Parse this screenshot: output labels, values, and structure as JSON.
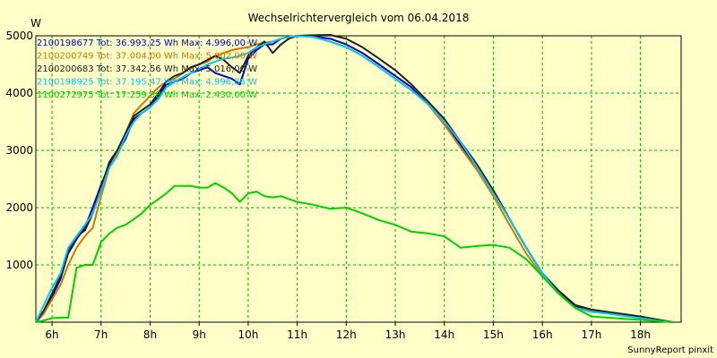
{
  "chart_data": {
    "type": "line",
    "title": "Wechselrichtervergleich vom 06.04.2018",
    "ylabel": "W",
    "xlabel": "",
    "footer": "SunnyReport pinxit",
    "xlim": [
      5.67,
      18.83
    ],
    "ylim": [
      0,
      5000
    ],
    "yticks": [
      1000,
      2000,
      3000,
      4000,
      5000
    ],
    "xticks": [
      6,
      7,
      8,
      9,
      10,
      11,
      12,
      13,
      14,
      15,
      16,
      17,
      18
    ],
    "xtick_labels": [
      "6h",
      "7h",
      "8h",
      "9h",
      "10h",
      "11h",
      "12h",
      "13h",
      "14h",
      "15h",
      "16h",
      "17h",
      "18h"
    ],
    "grid": true,
    "legend_position": "top-left",
    "series": [
      {
        "name": "2100198677 Tot: 36.993,25 Wh Max: 4.996,00 W",
        "color": "#0000c8",
        "points": [
          [
            5.67,
            0
          ],
          [
            5.83,
            150
          ],
          [
            6.0,
            450
          ],
          [
            6.17,
            750
          ],
          [
            6.33,
            1200
          ],
          [
            6.5,
            1450
          ],
          [
            6.67,
            1650
          ],
          [
            6.83,
            2000
          ],
          [
            7.0,
            2400
          ],
          [
            7.17,
            2750
          ],
          [
            7.33,
            2950
          ],
          [
            7.5,
            3200
          ],
          [
            7.67,
            3550
          ],
          [
            7.83,
            3650
          ],
          [
            8.0,
            3750
          ],
          [
            8.17,
            3950
          ],
          [
            8.33,
            4150
          ],
          [
            8.5,
            4200
          ],
          [
            8.67,
            4250
          ],
          [
            8.83,
            4350
          ],
          [
            9.0,
            4400
          ],
          [
            9.17,
            4450
          ],
          [
            9.33,
            4350
          ],
          [
            9.5,
            4300
          ],
          [
            9.67,
            4250
          ],
          [
            9.83,
            4150
          ],
          [
            10.0,
            4600
          ],
          [
            10.17,
            4750
          ],
          [
            10.33,
            4850
          ],
          [
            10.5,
            4850
          ],
          [
            10.67,
            4950
          ],
          [
            10.83,
            4980
          ],
          [
            11.0,
            4996
          ],
          [
            11.33,
            4990
          ],
          [
            11.67,
            4950
          ],
          [
            12.0,
            4850
          ],
          [
            12.33,
            4700
          ],
          [
            12.67,
            4500
          ],
          [
            13.0,
            4300
          ],
          [
            13.33,
            4100
          ],
          [
            13.67,
            3800
          ],
          [
            14.0,
            3500
          ],
          [
            14.33,
            3100
          ],
          [
            14.67,
            2700
          ],
          [
            15.0,
            2300
          ],
          [
            15.33,
            1800
          ],
          [
            15.67,
            1300
          ],
          [
            16.0,
            850
          ],
          [
            16.33,
            550
          ],
          [
            16.67,
            280
          ],
          [
            17.0,
            200
          ],
          [
            17.33,
            170
          ],
          [
            17.67,
            130
          ],
          [
            18.0,
            90
          ],
          [
            18.33,
            40
          ],
          [
            18.67,
            0
          ]
        ]
      },
      {
        "name": "2100200749 Tot: 37.004,00 Wh Max: 5.002,00 W",
        "color": "#d27800",
        "points": [
          [
            5.67,
            0
          ],
          [
            5.83,
            150
          ],
          [
            6.0,
            400
          ],
          [
            6.17,
            650
          ],
          [
            6.33,
            1000
          ],
          [
            6.5,
            1300
          ],
          [
            6.67,
            1500
          ],
          [
            6.83,
            1650
          ],
          [
            7.0,
            2200
          ],
          [
            7.17,
            2700
          ],
          [
            7.33,
            2950
          ],
          [
            7.5,
            3300
          ],
          [
            7.67,
            3650
          ],
          [
            7.83,
            3800
          ],
          [
            8.0,
            3950
          ],
          [
            8.17,
            4100
          ],
          [
            8.33,
            4200
          ],
          [
            8.5,
            4250
          ],
          [
            8.67,
            4350
          ],
          [
            8.83,
            4450
          ],
          [
            9.0,
            4500
          ],
          [
            9.17,
            4550
          ],
          [
            9.33,
            4650
          ],
          [
            9.5,
            4700
          ],
          [
            9.67,
            4750
          ],
          [
            9.83,
            4780
          ],
          [
            10.0,
            4800
          ],
          [
            10.17,
            4850
          ],
          [
            10.33,
            4880
          ],
          [
            10.5,
            4900
          ],
          [
            10.67,
            4950
          ],
          [
            10.83,
            4980
          ],
          [
            11.0,
            5002
          ],
          [
            11.33,
            4980
          ],
          [
            11.67,
            4900
          ],
          [
            12.0,
            4800
          ],
          [
            12.33,
            4650
          ],
          [
            12.67,
            4450
          ],
          [
            13.0,
            4250
          ],
          [
            13.33,
            4050
          ],
          [
            13.67,
            3800
          ],
          [
            14.0,
            3450
          ],
          [
            14.33,
            3050
          ],
          [
            14.67,
            2650
          ],
          [
            15.0,
            2200
          ],
          [
            15.33,
            1700
          ],
          [
            15.67,
            1200
          ],
          [
            16.0,
            800
          ],
          [
            16.33,
            500
          ],
          [
            16.67,
            250
          ],
          [
            17.0,
            200
          ],
          [
            17.33,
            160
          ],
          [
            17.67,
            120
          ],
          [
            18.0,
            80
          ],
          [
            18.33,
            30
          ],
          [
            18.67,
            0
          ]
        ]
      },
      {
        "name": "2100200683 Tot: 37.342,56 Wh Max: 5.016,00 W",
        "color": "#202020",
        "points": [
          [
            5.67,
            0
          ],
          [
            5.83,
            200
          ],
          [
            6.0,
            500
          ],
          [
            6.17,
            800
          ],
          [
            6.33,
            1250
          ],
          [
            6.5,
            1500
          ],
          [
            6.67,
            1600
          ],
          [
            6.83,
            1900
          ],
          [
            7.0,
            2350
          ],
          [
            7.17,
            2800
          ],
          [
            7.33,
            3000
          ],
          [
            7.5,
            3300
          ],
          [
            7.67,
            3600
          ],
          [
            7.83,
            3700
          ],
          [
            8.0,
            3800
          ],
          [
            8.17,
            4000
          ],
          [
            8.33,
            4200
          ],
          [
            8.5,
            4300
          ],
          [
            8.67,
            4350
          ],
          [
            8.83,
            4450
          ],
          [
            9.0,
            4500
          ],
          [
            9.17,
            4580
          ],
          [
            9.33,
            4650
          ],
          [
            9.5,
            4580
          ],
          [
            9.67,
            4450
          ],
          [
            9.83,
            4350
          ],
          [
            10.0,
            4650
          ],
          [
            10.17,
            4800
          ],
          [
            10.33,
            4900
          ],
          [
            10.5,
            4700
          ],
          [
            10.67,
            4850
          ],
          [
            10.83,
            4950
          ],
          [
            11.0,
            5000
          ],
          [
            11.33,
            5010
          ],
          [
            11.67,
            5016
          ],
          [
            12.0,
            4950
          ],
          [
            12.33,
            4800
          ],
          [
            12.67,
            4600
          ],
          [
            13.0,
            4400
          ],
          [
            13.33,
            4150
          ],
          [
            13.67,
            3850
          ],
          [
            14.0,
            3550
          ],
          [
            14.33,
            3150
          ],
          [
            14.67,
            2750
          ],
          [
            15.0,
            2300
          ],
          [
            15.33,
            1800
          ],
          [
            15.67,
            1300
          ],
          [
            16.0,
            850
          ],
          [
            16.33,
            550
          ],
          [
            16.67,
            300
          ],
          [
            17.0,
            220
          ],
          [
            17.33,
            180
          ],
          [
            17.67,
            140
          ],
          [
            18.0,
            100
          ],
          [
            18.33,
            50
          ],
          [
            18.67,
            0
          ]
        ]
      },
      {
        "name": "2100198925 Tot: 37.195,47 Wh Max: 4.996,86 W",
        "color": "#00c8f0",
        "points": [
          [
            5.67,
            0
          ],
          [
            5.83,
            300
          ],
          [
            6.0,
            600
          ],
          [
            6.17,
            850
          ],
          [
            6.33,
            1300
          ],
          [
            6.5,
            1500
          ],
          [
            6.67,
            1700
          ],
          [
            6.83,
            1900
          ],
          [
            7.0,
            2300
          ],
          [
            7.17,
            2700
          ],
          [
            7.33,
            2900
          ],
          [
            7.5,
            3250
          ],
          [
            7.67,
            3500
          ],
          [
            7.83,
            3650
          ],
          [
            8.0,
            3750
          ],
          [
            8.17,
            3900
          ],
          [
            8.33,
            4100
          ],
          [
            8.5,
            4200
          ],
          [
            8.67,
            4280
          ],
          [
            8.83,
            4350
          ],
          [
            9.0,
            4420
          ],
          [
            9.17,
            4500
          ],
          [
            9.33,
            4550
          ],
          [
            9.5,
            4600
          ],
          [
            9.67,
            4620
          ],
          [
            9.83,
            4650
          ],
          [
            10.0,
            4700
          ],
          [
            10.17,
            4800
          ],
          [
            10.33,
            4850
          ],
          [
            10.5,
            4900
          ],
          [
            10.67,
            4950
          ],
          [
            10.83,
            4980
          ],
          [
            11.0,
            4996
          ],
          [
            11.33,
            4980
          ],
          [
            11.67,
            4900
          ],
          [
            12.0,
            4800
          ],
          [
            12.33,
            4650
          ],
          [
            12.67,
            4450
          ],
          [
            13.0,
            4250
          ],
          [
            13.33,
            4050
          ],
          [
            13.67,
            3800
          ],
          [
            14.0,
            3500
          ],
          [
            14.33,
            3150
          ],
          [
            14.67,
            2700
          ],
          [
            15.0,
            2250
          ],
          [
            15.33,
            1800
          ],
          [
            15.67,
            1300
          ],
          [
            16.0,
            850
          ],
          [
            16.33,
            500
          ],
          [
            16.67,
            250
          ],
          [
            17.0,
            180
          ],
          [
            17.33,
            150
          ],
          [
            17.67,
            110
          ],
          [
            18.0,
            70
          ],
          [
            18.33,
            30
          ],
          [
            18.67,
            0
          ]
        ]
      },
      {
        "name": "1100272975 Tot: 17.259,38 Wh Max: 2.430,00 W",
        "color": "#00d200",
        "points": [
          [
            5.67,
            0
          ],
          [
            5.83,
            30
          ],
          [
            6.0,
            70
          ],
          [
            6.17,
            80
          ],
          [
            6.33,
            80
          ],
          [
            6.5,
            950
          ],
          [
            6.67,
            1000
          ],
          [
            6.83,
            1000
          ],
          [
            7.0,
            1400
          ],
          [
            7.17,
            1550
          ],
          [
            7.33,
            1650
          ],
          [
            7.5,
            1700
          ],
          [
            7.67,
            1800
          ],
          [
            7.83,
            1900
          ],
          [
            8.0,
            2050
          ],
          [
            8.17,
            2150
          ],
          [
            8.33,
            2250
          ],
          [
            8.5,
            2380
          ],
          [
            8.67,
            2380
          ],
          [
            8.83,
            2380
          ],
          [
            9.0,
            2350
          ],
          [
            9.17,
            2350
          ],
          [
            9.33,
            2430
          ],
          [
            9.5,
            2350
          ],
          [
            9.67,
            2250
          ],
          [
            9.83,
            2100
          ],
          [
            10.0,
            2250
          ],
          [
            10.17,
            2280
          ],
          [
            10.33,
            2200
          ],
          [
            10.5,
            2180
          ],
          [
            10.67,
            2200
          ],
          [
            10.83,
            2150
          ],
          [
            11.0,
            2100
          ],
          [
            11.33,
            2050
          ],
          [
            11.67,
            1980
          ],
          [
            12.0,
            2000
          ],
          [
            12.33,
            1900
          ],
          [
            12.67,
            1780
          ],
          [
            13.0,
            1700
          ],
          [
            13.33,
            1580
          ],
          [
            13.67,
            1550
          ],
          [
            14.0,
            1500
          ],
          [
            14.33,
            1300
          ],
          [
            14.67,
            1330
          ],
          [
            15.0,
            1350
          ],
          [
            15.33,
            1300
          ],
          [
            15.67,
            1100
          ],
          [
            16.0,
            800
          ],
          [
            16.33,
            500
          ],
          [
            16.67,
            250
          ],
          [
            17.0,
            100
          ],
          [
            17.33,
            80
          ],
          [
            17.67,
            60
          ],
          [
            18.0,
            40
          ],
          [
            18.33,
            20
          ],
          [
            18.67,
            0
          ]
        ]
      }
    ]
  }
}
